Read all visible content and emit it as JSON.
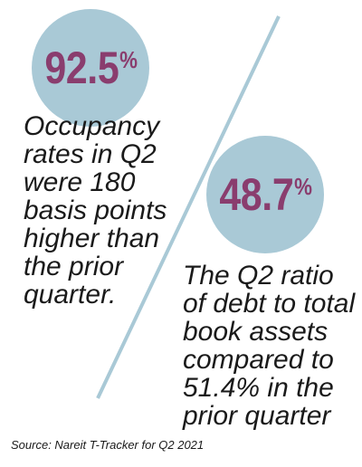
{
  "colors": {
    "circle_fill": "#a9c9d6",
    "value_text": "#8a3d6e",
    "divider": "#a9c9d6"
  },
  "stat_1": {
    "number": "92.5",
    "percent_sign": "%",
    "description_lines": [
      "Occupancy",
      "rates in Q2",
      "were 180",
      "basis points",
      "higher than",
      "the prior",
      "quarter."
    ]
  },
  "stat_2": {
    "number": "48.7",
    "percent_sign": "%",
    "description_lines": [
      "The Q2 ratio",
      "of debt to total",
      "book assets",
      "compared to",
      "51.4% in the",
      "prior quarter"
    ]
  },
  "source": "Source: Nareit T-Tracker for Q2 2021"
}
